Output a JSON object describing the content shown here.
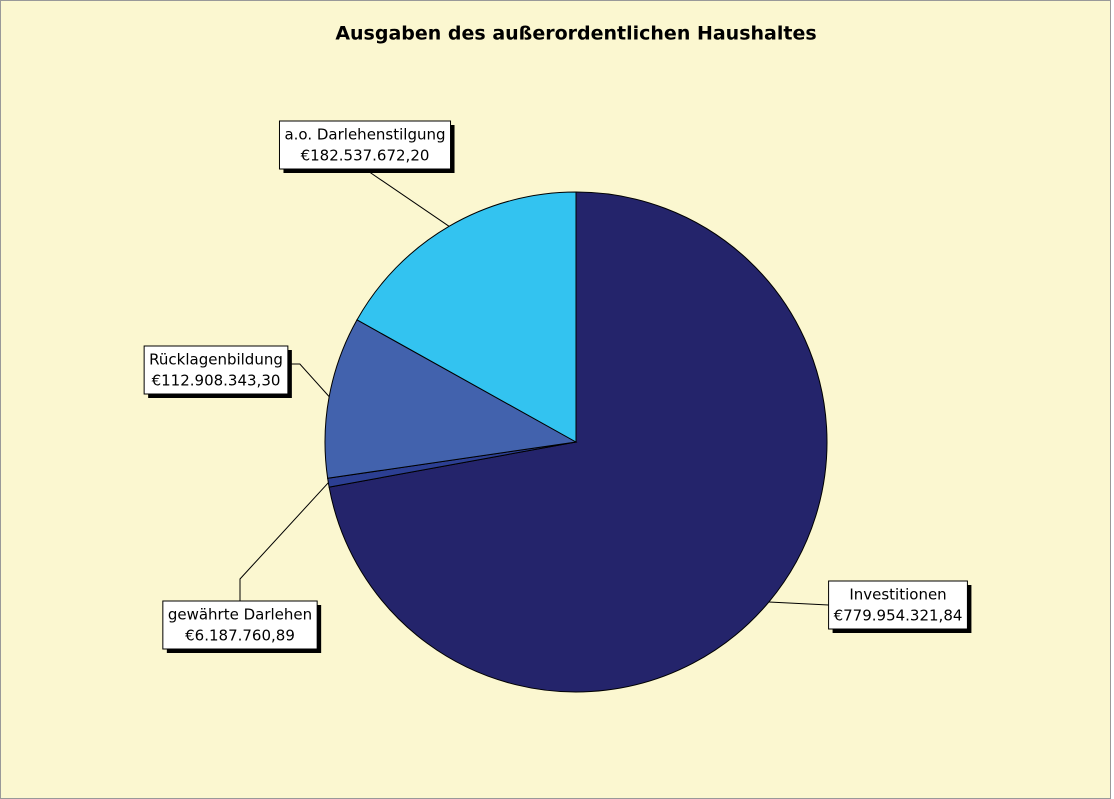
{
  "chart_data": {
    "type": "pie",
    "title": "Ausgaben des außerordentlichen Haushaltes",
    "categories": [
      "Investitionen",
      "gewährte Darlehen",
      "Rücklagenbildung",
      "a.o. Darlehenstilgung"
    ],
    "values": [
      779954321.84,
      6187760.89,
      112908343.3,
      182537672.2
    ],
    "value_labels": [
      "€779.954.321,84",
      "€6.187.760,89",
      "€112.908.343,30",
      "€182.537.672,20"
    ],
    "colors": [
      "#24246b",
      "#2c3f93",
      "#4262ad",
      "#33c3f0"
    ],
    "background": "#fbf7d0"
  }
}
